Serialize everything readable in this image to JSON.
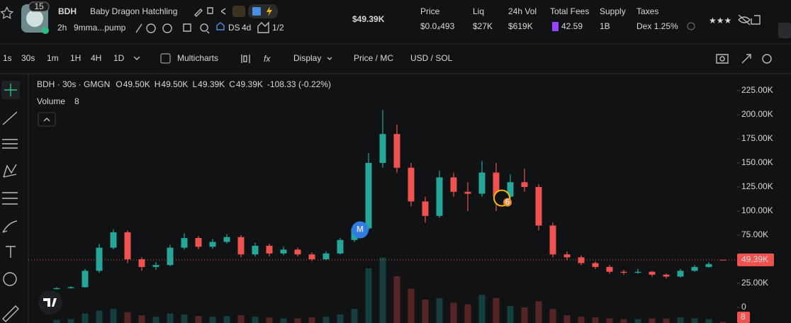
{
  "header": {
    "badge": "15",
    "symbol": "BDH",
    "name": "Baby Dragon Hatchling",
    "age": "2h",
    "address": "9mma...pump",
    "ds": "DS",
    "ds_age": "4d",
    "ratio": "1/2",
    "market_cap": "$49.39K",
    "stats": [
      {
        "label": "Price",
        "value": "$0.0₄493"
      },
      {
        "label": "Liq",
        "value": "$27K"
      },
      {
        "label": "24h Vol",
        "value": "$619K"
      },
      {
        "label": "Total Fees",
        "value": "42.59"
      },
      {
        "label": "Supply",
        "value": "1B"
      },
      {
        "label": "Taxes",
        "value": "Dex 1.25%"
      }
    ]
  },
  "toolbar": {
    "intervals": [
      "1s",
      "30s",
      "1m",
      "1H",
      "4H",
      "1D"
    ],
    "multicharts": "Multicharts",
    "display": "Display",
    "price_mc": "Price / MC",
    "currency": "USD / SOL"
  },
  "chart_data": {
    "type": "candlestick",
    "title": "BDH · 30s · GMGN",
    "ohlc_legend": [
      {
        "key": "O",
        "value": "49.50K"
      },
      {
        "key": "H",
        "value": "49.50K"
      },
      {
        "key": "L",
        "value": "49.39K"
      },
      {
        "key": "C",
        "value": "49.39K"
      }
    ],
    "change": "-108.33 (-0.22%)",
    "volume_label": "Volume",
    "volume_value": "8",
    "candles": [
      [
        19000,
        21000,
        18500,
        20000
      ],
      [
        20000,
        22000,
        19500,
        21000
      ],
      [
        21000,
        40000,
        20500,
        38000
      ],
      [
        38000,
        66000,
        36000,
        62000
      ],
      [
        62000,
        81000,
        60000,
        78000
      ],
      [
        78000,
        80000,
        46000,
        50000
      ],
      [
        50000,
        52000,
        38000,
        42000
      ],
      [
        42000,
        47000,
        39000,
        44000
      ],
      [
        44000,
        65000,
        43000,
        62000
      ],
      [
        62000,
        77000,
        60000,
        72000
      ],
      [
        72000,
        74000,
        60000,
        63000
      ],
      [
        63000,
        71000,
        61000,
        68000
      ],
      [
        68000,
        76000,
        66000,
        73000
      ],
      [
        73000,
        75000,
        52000,
        55000
      ],
      [
        55000,
        67000,
        53000,
        64000
      ],
      [
        64000,
        66000,
        53000,
        56000
      ],
      [
        56000,
        63000,
        54000,
        60000
      ],
      [
        60000,
        62000,
        53000,
        55000
      ],
      [
        55000,
        57000,
        48000,
        50000
      ],
      [
        50000,
        58000,
        49000,
        56000
      ],
      [
        56000,
        72000,
        55000,
        70000
      ],
      [
        70000,
        85000,
        68000,
        82000
      ],
      [
        82000,
        160000,
        80000,
        150000
      ],
      [
        150000,
        205000,
        145000,
        180000
      ],
      [
        180000,
        190000,
        140000,
        145000
      ],
      [
        145000,
        150000,
        105000,
        110000
      ],
      [
        110000,
        115000,
        88000,
        95000
      ],
      [
        95000,
        142000,
        93000,
        135000
      ],
      [
        135000,
        140000,
        115000,
        120000
      ],
      [
        120000,
        130000,
        100000,
        118000
      ],
      [
        118000,
        152000,
        115000,
        140000
      ],
      [
        140000,
        150000,
        100000,
        115000
      ],
      [
        115000,
        138000,
        112000,
        130000
      ],
      [
        130000,
        144000,
        120000,
        125000
      ],
      [
        125000,
        128000,
        80000,
        85000
      ],
      [
        85000,
        88000,
        52000,
        55000
      ],
      [
        55000,
        58000,
        49000,
        52000
      ],
      [
        52000,
        54000,
        44000,
        46000
      ],
      [
        46000,
        48000,
        40000,
        42000
      ],
      [
        42000,
        44000,
        35000,
        37000
      ],
      [
        37000,
        39000,
        34000,
        36000
      ],
      [
        36000,
        40000,
        35000,
        37000
      ],
      [
        37000,
        38000,
        32000,
        34000
      ],
      [
        34000,
        35000,
        30000,
        32000
      ],
      [
        32000,
        40000,
        31000,
        38000
      ],
      [
        38000,
        44000,
        37000,
        42000
      ],
      [
        42000,
        47000,
        41000,
        45000
      ],
      [
        49500,
        49500,
        49390,
        49390
      ]
    ],
    "volumes": [
      20,
      25,
      60,
      80,
      90,
      70,
      50,
      40,
      60,
      55,
      45,
      40,
      45,
      50,
      40,
      35,
      30,
      30,
      35,
      40,
      55,
      90,
      350,
      420,
      300,
      220,
      150,
      160,
      130,
      120,
      180,
      160,
      110,
      100,
      140,
      90,
      50,
      40,
      35,
      30,
      25,
      25,
      30,
      28,
      35,
      30,
      25,
      8
    ],
    "vlim": [
      0,
      500
    ],
    "up_color": "#26a69a",
    "down_color": "#ef5350",
    "ylim": [
      -16176,
      241912
    ],
    "yticks": [
      {
        "value": 0,
        "label": "0"
      },
      {
        "value": 25000,
        "label": "25.00K"
      },
      {
        "value": 75000,
        "label": "75.00K"
      },
      {
        "value": 100000,
        "label": "100.00K"
      },
      {
        "value": 125000,
        "label": "125.00K"
      },
      {
        "value": 150000,
        "label": "150.00K"
      },
      {
        "value": 175000,
        "label": "175.00K"
      },
      {
        "value": 200000,
        "label": "200.00K"
      },
      {
        "value": 225000,
        "label": "225.00K"
      }
    ],
    "last_price": {
      "value": 49390,
      "label": "49.39K"
    },
    "markers": [
      "M",
      "6"
    ]
  }
}
